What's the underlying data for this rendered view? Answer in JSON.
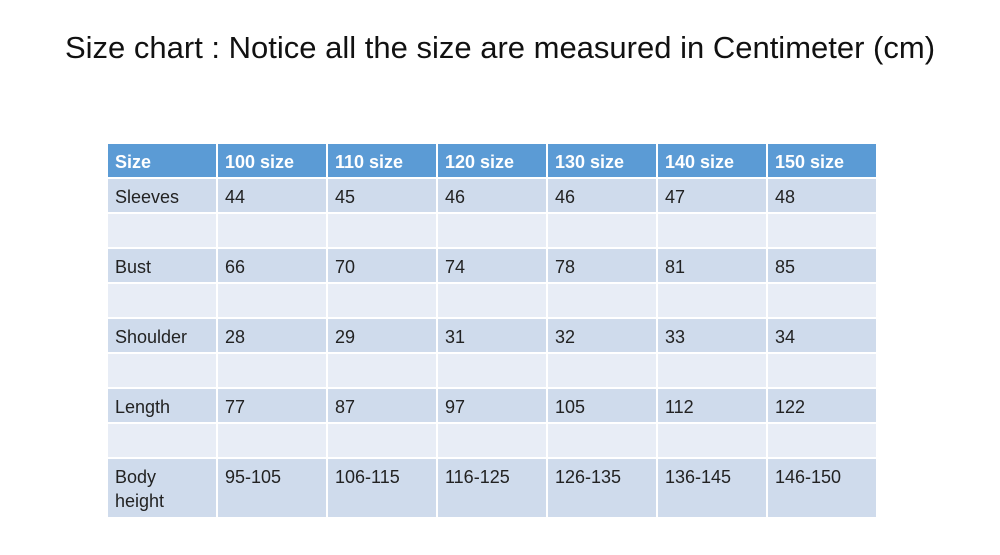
{
  "header": {
    "title": "Size chart : Notice all the size are measured in Centimeter (cm)"
  },
  "table": {
    "columns": [
      "Size",
      "100 size",
      "110 size",
      "120 size",
      "130 size",
      "140 size",
      "150 size"
    ],
    "rows": [
      [
        "Sleeves",
        "44",
        "45",
        "46",
        "46",
        "47",
        "48"
      ],
      [
        "Bust",
        "66",
        "70",
        "74",
        "78",
        "81",
        "85"
      ],
      [
        "Shoulder",
        "28",
        "29",
        "31",
        "32",
        "33",
        "34"
      ],
      [
        "Length",
        "77",
        "87",
        "97",
        "105",
        "112",
        "122"
      ],
      [
        "Body height",
        "95-105",
        "106-115",
        "116-125",
        "126-135",
        "136-145",
        "146-150"
      ]
    ]
  }
}
